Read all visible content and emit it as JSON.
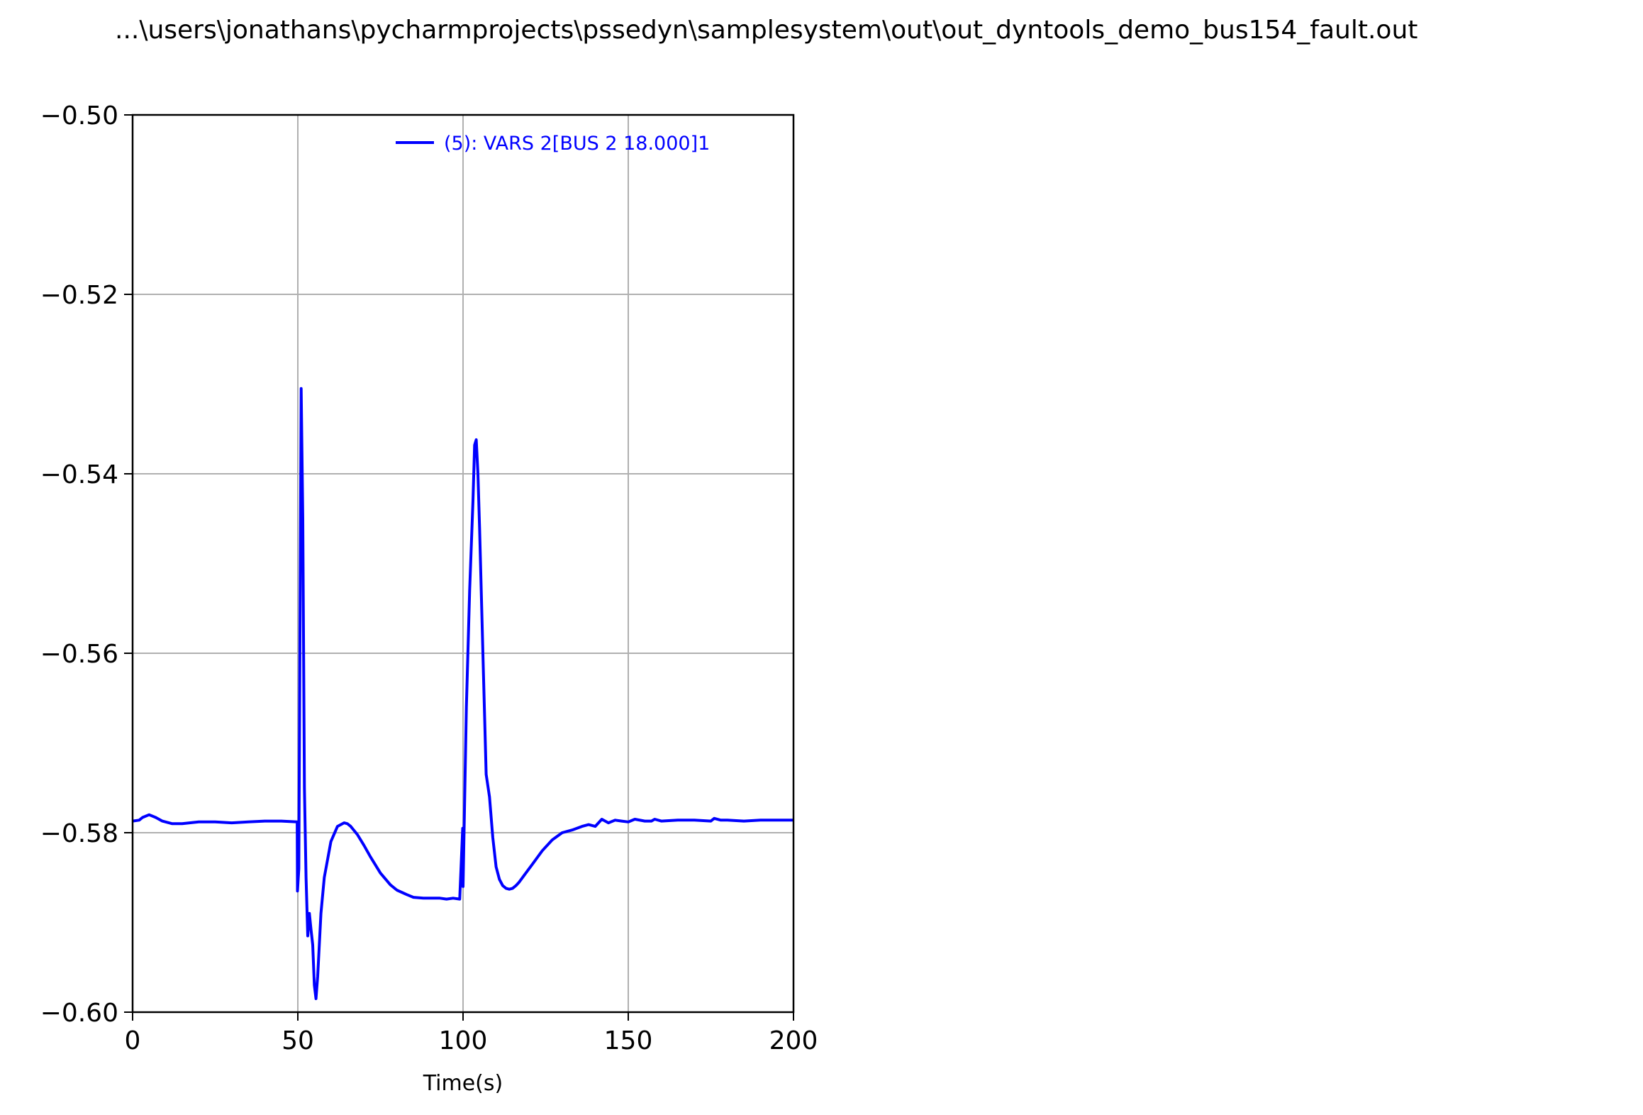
{
  "title": "...\\users\\jonathans\\pycharmprojects\\pssedyn\\samplesystem\\out\\out_dyntools_demo_bus154_fault.out",
  "colors": {
    "series": "#0000ff",
    "grid": "#b0b0b0",
    "axis": "#000000"
  },
  "chart_data": {
    "type": "line",
    "title": "...\\users\\jonathans\\pycharmprojects\\pssedyn\\samplesystem\\out\\out_dyntools_demo_bus154_fault.out",
    "xlabel": "Time(s)",
    "ylabel": "",
    "xlim": [
      0,
      200
    ],
    "ylim": [
      -0.6,
      -0.5
    ],
    "xticks": [
      0,
      50,
      100,
      150,
      200
    ],
    "xtick_labels": [
      "0",
      "50",
      "100",
      "150",
      "200"
    ],
    "yticks": [
      -0.6,
      -0.58,
      -0.56,
      -0.54,
      -0.52,
      -0.5
    ],
    "ytick_labels": [
      "−0.60",
      "−0.58",
      "−0.56",
      "−0.54",
      "−0.52",
      "−0.50"
    ],
    "grid": true,
    "legend": "upper right",
    "series": [
      {
        "name": "(5): VARS 2[BUS 2 18.000]1",
        "color": "#0000ff",
        "x": [
          0,
          2,
          3,
          5,
          7,
          9,
          12,
          15,
          20,
          25,
          30,
          35,
          40,
          45,
          49.8,
          49.9,
          50.3,
          51,
          51.5,
          52,
          52.5,
          53,
          53.5,
          54,
          54.5,
          55,
          55.5,
          56,
          57,
          58,
          60,
          62,
          64,
          65,
          66,
          68,
          70,
          72,
          75,
          78,
          80,
          83,
          85,
          88,
          90,
          93,
          95,
          97,
          99,
          99.9,
          100,
          100.3,
          101,
          102,
          103,
          103.5,
          104,
          104.5,
          105,
          106,
          107,
          108,
          109,
          110,
          111,
          112,
          113,
          114,
          115,
          116,
          117,
          119,
          121,
          124,
          127,
          130,
          133,
          136,
          138,
          140,
          142,
          144,
          146,
          148,
          150,
          152,
          155,
          157,
          158,
          160,
          165,
          170,
          175,
          176,
          178,
          180,
          185,
          190,
          195,
          200
        ],
        "y": [
          -0.5787,
          -0.5786,
          -0.5783,
          -0.578,
          -0.5783,
          -0.5787,
          -0.579,
          -0.579,
          -0.5788,
          -0.5788,
          -0.5789,
          -0.5788,
          -0.5787,
          -0.5787,
          -0.5788,
          -0.5865,
          -0.584,
          -0.5305,
          -0.545,
          -0.575,
          -0.585,
          -0.5915,
          -0.589,
          -0.5908,
          -0.5925,
          -0.597,
          -0.5985,
          -0.596,
          -0.589,
          -0.585,
          -0.581,
          -0.5793,
          -0.5789,
          -0.579,
          -0.5793,
          -0.5802,
          -0.5814,
          -0.5827,
          -0.5845,
          -0.5858,
          -0.5864,
          -0.5869,
          -0.5872,
          -0.5873,
          -0.5873,
          -0.5873,
          -0.5874,
          -0.5873,
          -0.5874,
          -0.5795,
          -0.586,
          -0.58,
          -0.566,
          -0.553,
          -0.543,
          -0.5368,
          -0.5362,
          -0.54,
          -0.546,
          -0.56,
          -0.5735,
          -0.576,
          -0.5805,
          -0.5838,
          -0.5852,
          -0.5859,
          -0.5862,
          -0.5863,
          -0.5862,
          -0.5859,
          -0.5855,
          -0.5845,
          -0.5835,
          -0.582,
          -0.5808,
          -0.58,
          -0.5797,
          -0.5793,
          -0.5791,
          -0.5793,
          -0.5785,
          -0.5789,
          -0.5786,
          -0.5787,
          -0.5788,
          -0.5785,
          -0.5787,
          -0.5787,
          -0.5785,
          -0.5787,
          -0.5786,
          -0.5786,
          -0.5787,
          -0.5784,
          -0.5786,
          -0.5786,
          -0.5787,
          -0.5786,
          -0.5786,
          -0.5786
        ]
      }
    ]
  }
}
